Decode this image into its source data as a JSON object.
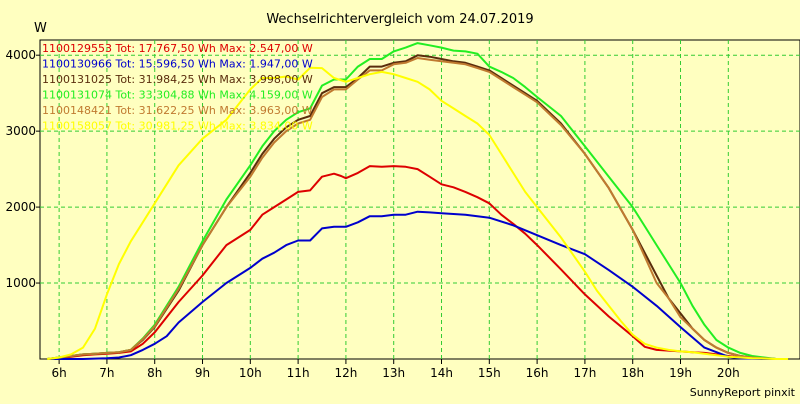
{
  "chart_data": {
    "type": "line",
    "title": "Wechselrichtervergleich vom 24.07.2019",
    "ylabel": "W",
    "xlabel": "",
    "footer": "SunnyReport pinxit",
    "grid": true,
    "xlim": [
      5.6,
      21.5
    ],
    "ylim": [
      0,
      4200
    ],
    "xticks": [
      6,
      7,
      8,
      9,
      10,
      11,
      12,
      13,
      14,
      15,
      16,
      17,
      18,
      19,
      20
    ],
    "xtick_labels": [
      "6h",
      "7h",
      "8h",
      "9h",
      "10h",
      "11h",
      "12h",
      "13h",
      "14h",
      "15h",
      "16h",
      "17h",
      "18h",
      "19h",
      "20h"
    ],
    "yticks": [
      1000,
      2000,
      3000,
      4000
    ],
    "ytick_labels": [
      "1000",
      "2000",
      "3000",
      "4000"
    ],
    "legend": "top-left",
    "series": [
      {
        "name": "1100129553",
        "legend_label": "1100129553 Tot: 17.767,50 Wh Max: 2.547,00 W",
        "color": "#dd0000",
        "x": [
          5.75,
          6,
          6.25,
          6.5,
          6.75,
          7,
          7.25,
          7.5,
          7.75,
          8,
          8.5,
          9,
          9.5,
          10,
          10.25,
          10.5,
          10.75,
          11,
          11.25,
          11.5,
          11.75,
          11.9,
          12,
          12.25,
          12.5,
          12.75,
          13,
          13.25,
          13.5,
          13.75,
          14,
          14.25,
          14.5,
          14.75,
          15,
          15.25,
          15.5,
          15.75,
          16,
          16.5,
          17,
          17.5,
          18,
          18.25,
          18.5,
          18.75,
          19,
          19.25,
          19.5,
          19.75,
          20,
          20.25,
          20.5,
          20.75,
          21,
          21.25
        ],
        "y": [
          0,
          10,
          30,
          50,
          60,
          70,
          80,
          100,
          200,
          350,
          750,
          1100,
          1500,
          1700,
          1900,
          2000,
          2100,
          2200,
          2220,
          2400,
          2440,
          2410,
          2380,
          2450,
          2540,
          2530,
          2540,
          2530,
          2500,
          2400,
          2300,
          2260,
          2200,
          2130,
          2050,
          1900,
          1780,
          1650,
          1500,
          1180,
          850,
          560,
          300,
          160,
          120,
          110,
          100,
          90,
          80,
          60,
          40,
          20,
          10,
          5,
          0,
          0
        ]
      },
      {
        "name": "1100130966",
        "legend_label": "1100130966 Tot: 15.596,50 Wh Max: 1.947,00 W",
        "color": "#0000cc",
        "x": [
          5.75,
          6,
          6.5,
          7,
          7.25,
          7.5,
          7.75,
          8,
          8.25,
          8.5,
          9,
          9.5,
          10,
          10.25,
          10.5,
          10.75,
          11,
          11.25,
          11.5,
          11.75,
          12,
          12.25,
          12.5,
          12.75,
          13,
          13.25,
          13.5,
          13.75,
          14,
          14.5,
          15,
          15.5,
          16,
          16.5,
          17,
          17.5,
          18,
          18.5,
          19,
          19.5,
          20,
          20.25,
          20.5,
          20.75,
          21
        ],
        "y": [
          0,
          0,
          0,
          10,
          20,
          50,
          120,
          200,
          300,
          480,
          750,
          1000,
          1200,
          1320,
          1400,
          1500,
          1560,
          1560,
          1720,
          1740,
          1740,
          1800,
          1880,
          1880,
          1900,
          1900,
          1940,
          1930,
          1920,
          1900,
          1860,
          1760,
          1630,
          1500,
          1380,
          1170,
          950,
          700,
          420,
          150,
          30,
          10,
          5,
          0,
          0
        ]
      },
      {
        "name": "1100131025",
        "legend_label": "1100131025 Tot: 31.984,25 Wh Max: 3.998,00 W",
        "color": "#5a2d0c",
        "x": [
          5.75,
          6,
          6.25,
          6.5,
          6.75,
          7,
          7.25,
          7.5,
          7.75,
          8,
          8.5,
          9,
          9.5,
          10,
          10.25,
          10.5,
          10.75,
          11,
          11.25,
          11.5,
          11.75,
          12,
          12.25,
          12.5,
          12.75,
          13,
          13.25,
          13.5,
          13.75,
          14,
          14.25,
          14.5,
          14.75,
          15,
          15.25,
          15.5,
          15.75,
          16,
          16.5,
          17,
          17.5,
          18,
          18.5,
          18.75,
          19,
          19.25,
          19.5,
          19.75,
          20,
          20.25,
          20.5,
          20.75,
          21,
          21.25
        ],
        "y": [
          0,
          20,
          40,
          60,
          70,
          80,
          90,
          120,
          250,
          420,
          900,
          1500,
          2000,
          2450,
          2700,
          2900,
          3050,
          3150,
          3200,
          3500,
          3580,
          3580,
          3700,
          3850,
          3850,
          3900,
          3920,
          3998,
          3980,
          3950,
          3920,
          3900,
          3850,
          3800,
          3700,
          3600,
          3500,
          3400,
          3100,
          2700,
          2250,
          1700,
          1100,
          800,
          600,
          400,
          250,
          150,
          80,
          40,
          20,
          10,
          0,
          0
        ]
      },
      {
        "name": "1100131074",
        "legend_label": "1100131074 Tot: 33.304,88 Wh Max: 4.159,00 W",
        "color": "#22ee22",
        "x": [
          5.75,
          6,
          6.25,
          6.5,
          6.75,
          7,
          7.25,
          7.5,
          7.75,
          8,
          8.5,
          9,
          9.5,
          10,
          10.25,
          10.5,
          10.75,
          11,
          11.25,
          11.5,
          11.75,
          12,
          12.25,
          12.5,
          12.75,
          13,
          13.25,
          13.5,
          13.75,
          14,
          14.25,
          14.5,
          14.75,
          15,
          15.25,
          15.5,
          15.75,
          16,
          16.5,
          17,
          17.5,
          18,
          18.25,
          18.5,
          18.75,
          19,
          19.25,
          19.5,
          19.75,
          20,
          20.25,
          20.5,
          20.75,
          21,
          21.25
        ],
        "y": [
          0,
          20,
          40,
          60,
          70,
          80,
          90,
          120,
          270,
          450,
          950,
          1550,
          2100,
          2550,
          2800,
          3000,
          3150,
          3250,
          3300,
          3600,
          3680,
          3680,
          3850,
          3950,
          3950,
          4050,
          4100,
          4159,
          4130,
          4100,
          4060,
          4050,
          4020,
          3850,
          3780,
          3700,
          3580,
          3450,
          3200,
          2800,
          2400,
          2000,
          1750,
          1500,
          1250,
          1000,
          700,
          450,
          250,
          150,
          80,
          40,
          20,
          0,
          0
        ]
      },
      {
        "name": "1100148421",
        "legend_label": "1100148421 Tot: 31.622,25 Wh Max: 3.963,00 W",
        "color": "#c07a30",
        "x": [
          5.75,
          6,
          6.25,
          6.5,
          6.75,
          7,
          7.25,
          7.5,
          7.75,
          8,
          8.5,
          9,
          9.5,
          10,
          10.25,
          10.5,
          10.75,
          11,
          11.25,
          11.5,
          11.75,
          12,
          12.25,
          12.5,
          12.75,
          13,
          13.25,
          13.5,
          13.75,
          14,
          14.25,
          14.5,
          14.75,
          15,
          15.25,
          15.5,
          15.75,
          16,
          16.5,
          17,
          17.5,
          18,
          18.25,
          18.5,
          18.75,
          19,
          19.25,
          19.5,
          19.75,
          20,
          20.25,
          20.5,
          20.75,
          21,
          21.25
        ],
        "y": [
          0,
          20,
          40,
          60,
          70,
          80,
          90,
          120,
          260,
          430,
          920,
          1500,
          2000,
          2400,
          2650,
          2850,
          3000,
          3100,
          3150,
          3450,
          3550,
          3550,
          3680,
          3800,
          3800,
          3880,
          3900,
          3963,
          3940,
          3920,
          3900,
          3880,
          3830,
          3780,
          3680,
          3580,
          3480,
          3380,
          3080,
          2700,
          2250,
          1700,
          1350,
          1000,
          800,
          550,
          400,
          250,
          150,
          80,
          40,
          20,
          10,
          0,
          0
        ]
      },
      {
        "name": "1100158057",
        "legend_label": "1100158057 Tot: 30.981,25 Wh Max: 3.834,00 W",
        "color": "#ffff00",
        "x": [
          5.75,
          6,
          6.25,
          6.5,
          6.75,
          7,
          7.25,
          7.5,
          7.75,
          8,
          8.5,
          9,
          9.5,
          10,
          10.25,
          10.5,
          10.75,
          11,
          11.25,
          11.5,
          11.75,
          12,
          12.25,
          12.5,
          12.75,
          13,
          13.25,
          13.5,
          13.75,
          14,
          14.25,
          14.5,
          14.75,
          15,
          15.25,
          15.5,
          15.75,
          16,
          16.5,
          17,
          17.25,
          17.5,
          17.75,
          18,
          18.25,
          18.5,
          18.75,
          19,
          19.25,
          19.5,
          19.75,
          20,
          20.25,
          20.5,
          20.75,
          21,
          21.25
        ],
        "y": [
          0,
          20,
          60,
          150,
          400,
          850,
          1250,
          1550,
          1800,
          2050,
          2550,
          2900,
          3150,
          3550,
          3700,
          3700,
          3720,
          3680,
          3834,
          3830,
          3700,
          3650,
          3700,
          3750,
          3780,
          3750,
          3700,
          3650,
          3550,
          3400,
          3300,
          3200,
          3100,
          2950,
          2700,
          2450,
          2200,
          2000,
          1600,
          1150,
          900,
          700,
          500,
          320,
          200,
          150,
          120,
          100,
          90,
          70,
          50,
          30,
          20,
          10,
          5,
          0,
          0
        ]
      }
    ]
  }
}
